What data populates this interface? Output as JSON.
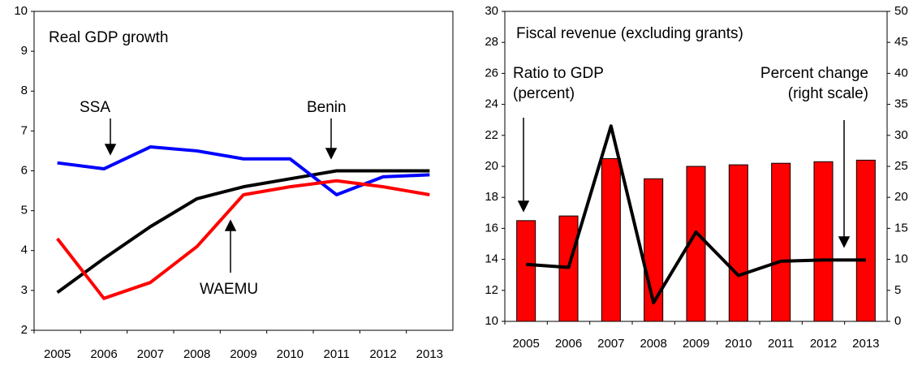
{
  "chart_data": [
    {
      "type": "line",
      "title": "Real GDP growth",
      "categories": [
        "2005",
        "2006",
        "2007",
        "2008",
        "2009",
        "2010",
        "2011",
        "2012",
        "2013"
      ],
      "series": [
        {
          "name": "Benin",
          "color": "#000000",
          "values": [
            2.95,
            3.8,
            4.6,
            5.3,
            5.6,
            5.8,
            6.0,
            6.0,
            6.0
          ]
        },
        {
          "name": "SSA",
          "color": "#0000ff",
          "values": [
            6.2,
            6.05,
            6.6,
            6.5,
            6.3,
            6.3,
            5.4,
            5.85,
            5.9
          ]
        },
        {
          "name": "WAEMU",
          "color": "#ff0000",
          "values": [
            4.3,
            2.8,
            3.2,
            4.1,
            5.4,
            5.6,
            5.75,
            5.6,
            5.4
          ]
        }
      ],
      "ylim": [
        2,
        10
      ],
      "yticks": [
        2,
        3,
        4,
        5,
        6,
        7,
        8,
        9,
        10
      ],
      "grid": false
    },
    {
      "type": "bar",
      "title": "Fiscal revenue (excluding grants)",
      "categories": [
        "2005",
        "2006",
        "2007",
        "2008",
        "2009",
        "2010",
        "2011",
        "2012",
        "2013"
      ],
      "series": [
        {
          "name": "Ratio to GDP (percent)",
          "color": "#ff0000",
          "values": [
            16.5,
            16.8,
            20.5,
            19.2,
            20.0,
            20.1,
            20.2,
            20.3,
            20.4
          ]
        },
        {
          "name": "Percent change (right scale)",
          "color": "#000000",
          "type": "line",
          "axis": "y2",
          "values": [
            9.2,
            8.7,
            31.5,
            3.0,
            14.4,
            7.4,
            9.7,
            9.9,
            9.9
          ]
        }
      ],
      "ylim": [
        10,
        30
      ],
      "yticks": [
        10,
        12,
        14,
        16,
        18,
        20,
        22,
        24,
        26,
        28,
        30
      ],
      "y2lim": [
        0,
        50
      ],
      "y2ticks": [
        0,
        5,
        10,
        15,
        20,
        25,
        30,
        35,
        40,
        45,
        50
      ],
      "grid": false
    }
  ]
}
